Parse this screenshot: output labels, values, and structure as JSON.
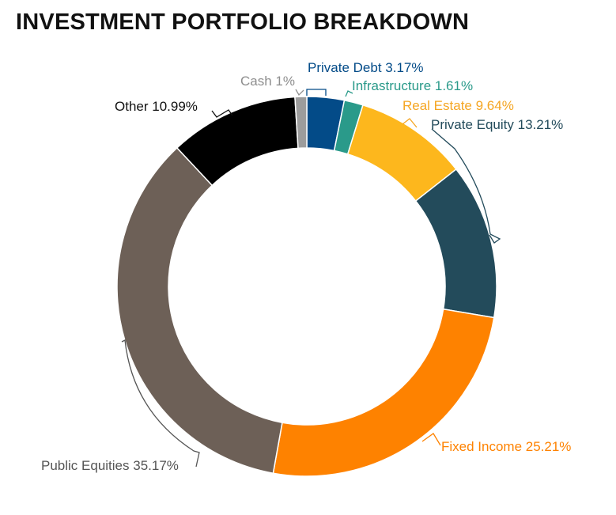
{
  "chart_data": {
    "type": "pie",
    "title": "INVESTMENT PORTFOLIO BREAKDOWN",
    "donut": true,
    "slices": [
      {
        "label": "Private Debt",
        "value": 3.17,
        "value_label": "3.17%",
        "color": "#034b88",
        "label_color": "#034b88"
      },
      {
        "label": "Infrastructure",
        "value": 1.61,
        "value_label": "1.61%",
        "color": "#2a9a8a",
        "label_color": "#2a9a8a"
      },
      {
        "label": "Real Estate",
        "value": 9.64,
        "value_label": "9.64%",
        "color": "#fdb71d",
        "label_color": "#f5a623"
      },
      {
        "label": "Private Equity",
        "value": 13.21,
        "value_label": "13.21%",
        "color": "#234b5b",
        "label_color": "#234b5b"
      },
      {
        "label": "Fixed Income",
        "value": 25.21,
        "value_label": "25.21%",
        "color": "#fe8200",
        "label_color": "#fe8200"
      },
      {
        "label": "Public Equities",
        "value": 35.17,
        "value_label": "35.17%",
        "color": "#6d6057",
        "label_color": "#555555"
      },
      {
        "label": "Other",
        "value": 10.99,
        "value_label": "10.99%",
        "color": "#000000",
        "label_color": "#111111"
      },
      {
        "label": "Cash",
        "value": 1,
        "value_label": "1%",
        "color": "#9c9c9c",
        "label_color": "#8e8e8e"
      }
    ]
  }
}
